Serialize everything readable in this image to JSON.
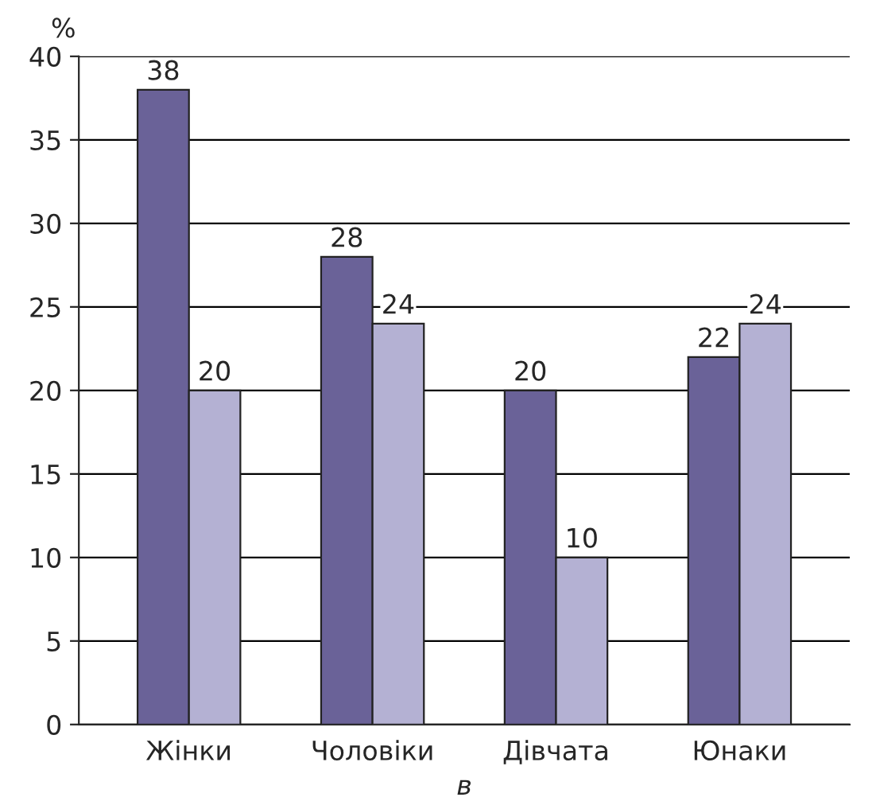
{
  "chart_data": {
    "type": "bar",
    "ylabel": "%",
    "xlabel": "в",
    "categories": [
      "Жінки",
      "Чоловіки",
      "Дівчата",
      "Юнаки"
    ],
    "series": [
      {
        "color": "#6a6298",
        "values": [
          38,
          28,
          20,
          22
        ]
      },
      {
        "color": "#b4b1d3",
        "values": [
          20,
          24,
          10,
          24
        ]
      }
    ],
    "ylim": [
      0,
      40
    ],
    "yticks": [
      0,
      5,
      10,
      15,
      20,
      25,
      30,
      35,
      40
    ],
    "grid": "y",
    "data_labels": true
  }
}
